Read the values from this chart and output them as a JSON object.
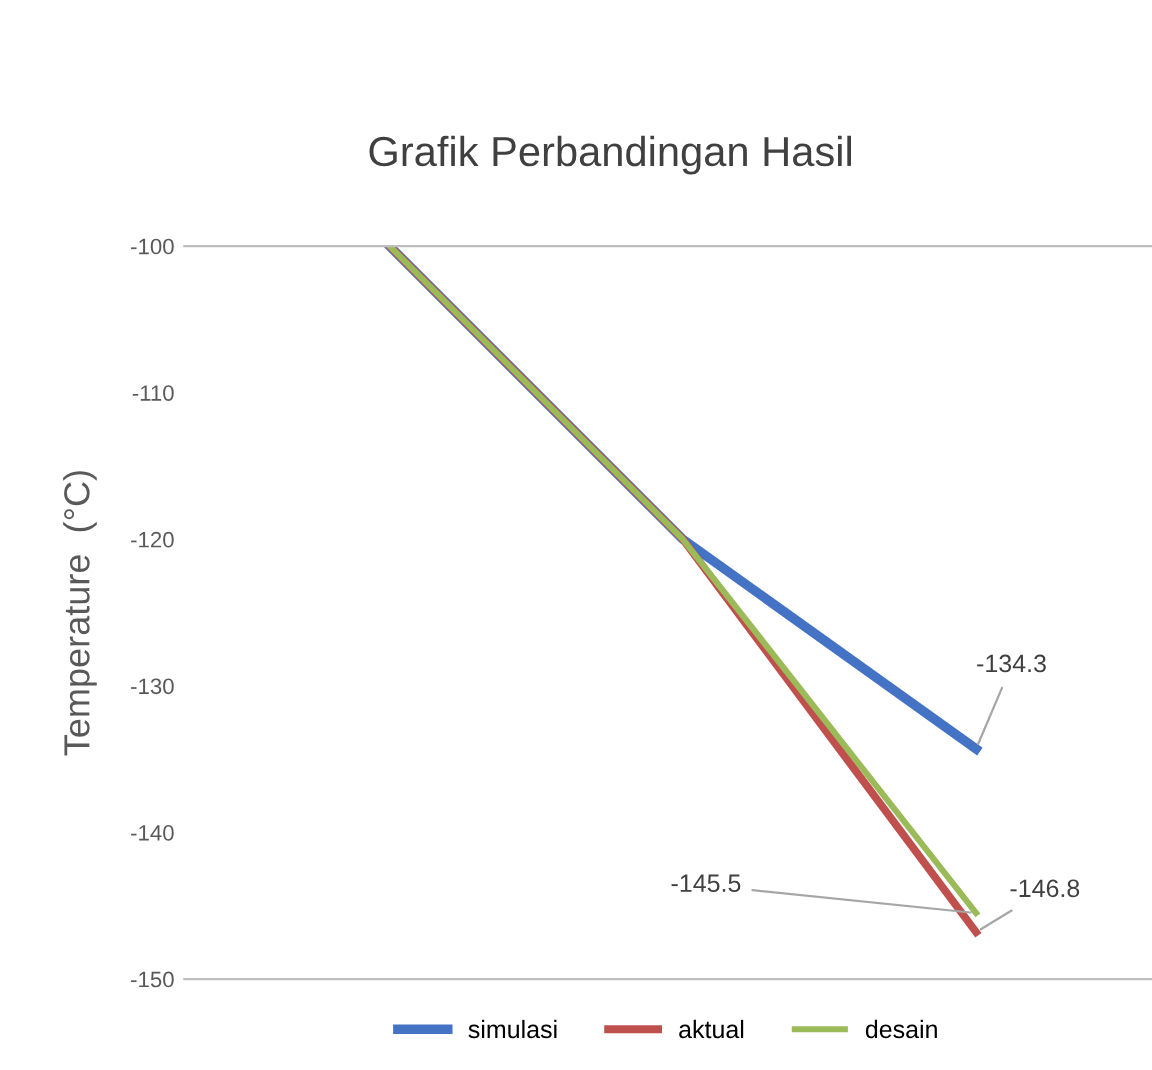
{
  "chart_data": {
    "type": "line",
    "title": "Grafik Perbandingan Hasil",
    "ylabel": "Temperature  (°C)",
    "categories": [
      null,
      null,
      null
    ],
    "ylim": [
      -150,
      -100
    ],
    "yticks": [
      -150,
      -140,
      -130,
      -120,
      -110,
      -100
    ],
    "grid": false,
    "legend": "bottom",
    "marker": "none",
    "line_style": "solid",
    "series": [
      {
        "name": "simulasi",
        "color": "#4472c4",
        "values": [
          -100,
          -120,
          -134.3
        ],
        "value_labels": [
          null,
          null,
          "-134.3"
        ]
      },
      {
        "name": "aktual",
        "color": "#c0504d",
        "values": [
          -100,
          -120,
          -146.8
        ],
        "value_labels": [
          null,
          null,
          "-146.8"
        ]
      },
      {
        "name": "desain",
        "color": "#9bbb59",
        "values": [
          -100,
          -120,
          -145.5
        ],
        "value_labels": [
          null,
          null,
          "-145.5"
        ]
      }
    ]
  }
}
